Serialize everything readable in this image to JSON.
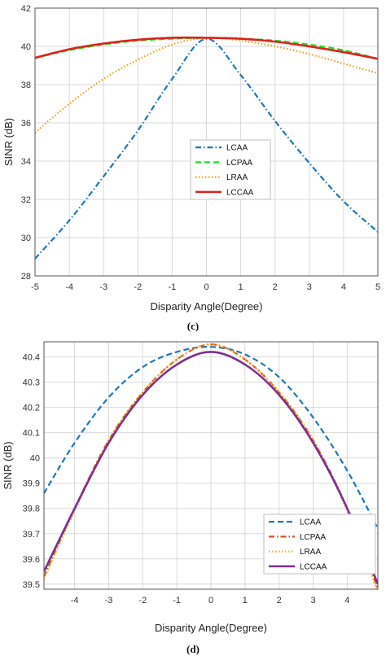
{
  "chart_data": [
    {
      "type": "line",
      "caption": "(c)",
      "xlabel": "Disparity Angle(Degree)",
      "ylabel": "SINR (dB)",
      "xlim": [
        -5,
        5
      ],
      "ylim": [
        28,
        42
      ],
      "xticks": [
        -5,
        -4,
        -3,
        -2,
        -1,
        0,
        1,
        2,
        3,
        4,
        5
      ],
      "yticks": [
        28,
        30,
        32,
        34,
        36,
        38,
        40,
        42
      ],
      "grid": true,
      "legend_position": "center",
      "x": [
        -5,
        -4,
        -3,
        -2,
        -1,
        0,
        1,
        2,
        3,
        4,
        5
      ],
      "series": [
        {
          "name": "LCAA",
          "color": "#1f77b4",
          "style": "dashdot",
          "values": [
            28.9,
            30.9,
            33.2,
            35.6,
            38.3,
            40.4,
            38.5,
            36.1,
            33.9,
            31.9,
            30.3
          ]
        },
        {
          "name": "LCPAA",
          "color": "#22dd22",
          "style": "dashed",
          "values": [
            39.4,
            39.8,
            40.1,
            40.3,
            40.4,
            40.45,
            40.4,
            40.3,
            40.1,
            39.8,
            39.35
          ]
        },
        {
          "name": "LRAA",
          "color": "#e8a317",
          "style": "dotted",
          "values": [
            35.5,
            37.0,
            38.3,
            39.3,
            40.1,
            40.45,
            40.3,
            40.0,
            39.6,
            39.1,
            38.6
          ]
        },
        {
          "name": "LCCAA",
          "color": "#e0201b",
          "style": "solid",
          "values": [
            39.4,
            39.85,
            40.15,
            40.35,
            40.45,
            40.45,
            40.4,
            40.25,
            40.0,
            39.7,
            39.35
          ]
        }
      ]
    },
    {
      "type": "line",
      "caption": "(d)",
      "xlabel": "Disparity Angle(Degree)",
      "ylabel": "SINR (dB)",
      "xlim": [
        -4.9,
        4.9
      ],
      "ylim": [
        39.48,
        40.46
      ],
      "xticks": [
        -4,
        -3,
        -2,
        -1,
        0,
        1,
        2,
        3,
        4
      ],
      "yticks": [
        39.5,
        39.6,
        39.7,
        39.8,
        39.9,
        40,
        40.1,
        40.2,
        40.3,
        40.4
      ],
      "grid": true,
      "legend_position": "bottom-right",
      "x": [
        -4.9,
        -4,
        -3,
        -2,
        -1,
        0,
        1,
        2,
        3,
        4,
        4.9
      ],
      "series": [
        {
          "name": "LCAA",
          "color": "#1f77b4",
          "style": "dashed",
          "values": [
            39.86,
            40.06,
            40.24,
            40.36,
            40.42,
            40.44,
            40.41,
            40.32,
            40.16,
            39.95,
            39.72
          ]
        },
        {
          "name": "LCPAA",
          "color": "#d9531e",
          "style": "dashdot",
          "values": [
            39.53,
            39.8,
            40.07,
            40.26,
            40.39,
            40.45,
            40.39,
            40.26,
            40.07,
            39.8,
            39.48
          ]
        },
        {
          "name": "LRAA",
          "color": "#edb120",
          "style": "dotted",
          "values": [
            39.52,
            39.79,
            40.07,
            40.26,
            40.39,
            40.45,
            40.39,
            40.26,
            40.07,
            39.79,
            39.47
          ]
        },
        {
          "name": "LCCAA",
          "color": "#7e2f8e",
          "style": "solid",
          "values": [
            39.55,
            39.8,
            40.06,
            40.25,
            40.37,
            40.42,
            40.37,
            40.25,
            40.06,
            39.8,
            39.5
          ]
        }
      ]
    }
  ]
}
